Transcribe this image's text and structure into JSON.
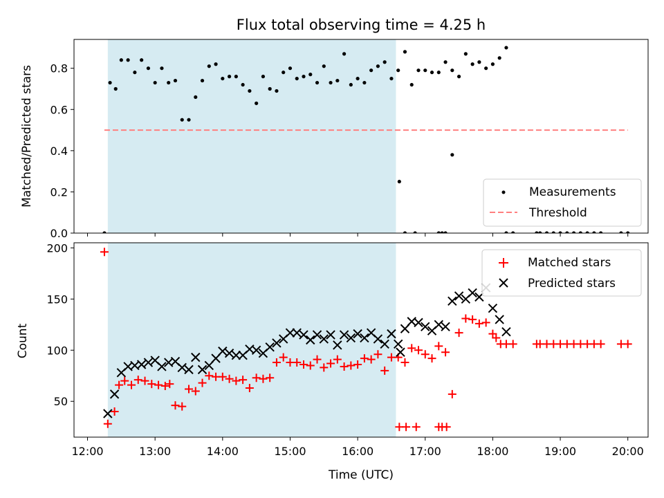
{
  "title": "Flux total observing time = 4.25 h",
  "chart_data": [
    {
      "type": "scatter",
      "panel": "top",
      "xlabel": "",
      "ylabel": "Matched/Predicted stars",
      "xlim": [
        "12:00",
        "20:00"
      ],
      "ylim": [
        0,
        0.94
      ],
      "yticks": [
        "0.0",
        "0.2",
        "0.4",
        "0.6",
        "0.8"
      ],
      "shaded_interval": [
        "12:18",
        "16:34"
      ],
      "shade_color": "#add8e6",
      "legend_position": "lower-right",
      "threshold": {
        "name": "Threshold",
        "value": 0.5,
        "x_range": [
          "12:15",
          "20:00"
        ],
        "color": "#ff7f7f",
        "style": "dashed"
      },
      "series": [
        {
          "name": "Measurements",
          "color": "#000000",
          "marker": "dot",
          "points": [
            [
              "12:15",
              0.0
            ],
            [
              "12:20",
              0.73
            ],
            [
              "12:25",
              0.7
            ],
            [
              "12:30",
              0.84
            ],
            [
              "12:36",
              0.84
            ],
            [
              "12:42",
              0.78
            ],
            [
              "12:48",
              0.84
            ],
            [
              "12:54",
              0.8
            ],
            [
              "13:00",
              0.73
            ],
            [
              "13:06",
              0.8
            ],
            [
              "13:12",
              0.73
            ],
            [
              "13:18",
              0.74
            ],
            [
              "13:24",
              0.55
            ],
            [
              "13:30",
              0.55
            ],
            [
              "13:36",
              0.66
            ],
            [
              "13:42",
              0.74
            ],
            [
              "13:48",
              0.81
            ],
            [
              "13:54",
              0.82
            ],
            [
              "14:00",
              0.75
            ],
            [
              "14:06",
              0.76
            ],
            [
              "14:12",
              0.76
            ],
            [
              "14:18",
              0.72
            ],
            [
              "14:24",
              0.69
            ],
            [
              "14:30",
              0.63
            ],
            [
              "14:36",
              0.76
            ],
            [
              "14:42",
              0.7
            ],
            [
              "14:48",
              0.69
            ],
            [
              "14:54",
              0.78
            ],
            [
              "15:00",
              0.8
            ],
            [
              "15:06",
              0.75
            ],
            [
              "15:12",
              0.76
            ],
            [
              "15:18",
              0.77
            ],
            [
              "15:24",
              0.73
            ],
            [
              "15:30",
              0.81
            ],
            [
              "15:36",
              0.73
            ],
            [
              "15:42",
              0.74
            ],
            [
              "15:48",
              0.87
            ],
            [
              "15:54",
              0.72
            ],
            [
              "16:00",
              0.75
            ],
            [
              "16:06",
              0.73
            ],
            [
              "16:12",
              0.79
            ],
            [
              "16:18",
              0.81
            ],
            [
              "16:24",
              0.83
            ],
            [
              "16:30",
              0.75
            ],
            [
              "16:36",
              0.79
            ],
            [
              "16:42",
              0.88
            ],
            [
              "16:48",
              0.72
            ],
            [
              "16:54",
              0.79
            ],
            [
              "17:00",
              0.79
            ],
            [
              "17:06",
              0.78
            ],
            [
              "17:12",
              0.78
            ],
            [
              "17:18",
              0.83
            ],
            [
              "17:24",
              0.79
            ],
            [
              "16:37",
              0.25
            ],
            [
              "16:42",
              0.0
            ],
            [
              "16:51",
              0.0
            ],
            [
              "17:12",
              0.0
            ],
            [
              "17:15",
              0.0
            ],
            [
              "17:18",
              0.0
            ],
            [
              "17:24",
              0.38
            ],
            [
              "17:30",
              0.76
            ],
            [
              "17:36",
              0.87
            ],
            [
              "17:42",
              0.82
            ],
            [
              "17:48",
              0.83
            ],
            [
              "17:54",
              0.8
            ],
            [
              "18:00",
              0.82
            ],
            [
              "18:06",
              0.85
            ],
            [
              "18:12",
              0.9
            ],
            [
              "18:12",
              0.0
            ],
            [
              "18:18",
              0.0
            ],
            [
              "18:39",
              0.0
            ],
            [
              "18:42",
              0.0
            ],
            [
              "18:48",
              0.0
            ],
            [
              "18:54",
              0.0
            ],
            [
              "19:00",
              0.0
            ],
            [
              "19:06",
              0.0
            ],
            [
              "19:12",
              0.0
            ],
            [
              "19:18",
              0.0
            ],
            [
              "19:24",
              0.0
            ],
            [
              "19:30",
              0.0
            ],
            [
              "19:36",
              0.0
            ],
            [
              "19:54",
              0.0
            ],
            [
              "20:00",
              0.0
            ]
          ]
        }
      ]
    },
    {
      "type": "scatter",
      "panel": "bottom",
      "xlabel": "Time (UTC)",
      "ylabel": "Count",
      "xlim": [
        "12:00",
        "20:00"
      ],
      "ylim": [
        15,
        205
      ],
      "yticks": [
        "50",
        "100",
        "150",
        "200"
      ],
      "xticks": [
        "12:00",
        "13:00",
        "14:00",
        "15:00",
        "16:00",
        "17:00",
        "18:00",
        "19:00",
        "20:00"
      ],
      "shaded_interval": [
        "12:18",
        "16:34"
      ],
      "shade_color": "#add8e6",
      "legend_position": "upper-right",
      "series": [
        {
          "name": "Matched stars",
          "color": "#ff0000",
          "marker": "plus",
          "points": [
            [
              "12:15",
              196
            ],
            [
              "12:18",
              28
            ],
            [
              "12:24",
              40
            ],
            [
              "12:28",
              66
            ],
            [
              "12:33",
              70
            ],
            [
              "12:39",
              66
            ],
            [
              "12:45",
              71
            ],
            [
              "12:51",
              70
            ],
            [
              "12:57",
              67
            ],
            [
              "13:03",
              66
            ],
            [
              "13:09",
              65
            ],
            [
              "13:13",
              67
            ],
            [
              "13:18",
              46
            ],
            [
              "13:24",
              45
            ],
            [
              "13:30",
              62
            ],
            [
              "13:36",
              60
            ],
            [
              "13:42",
              68
            ],
            [
              "13:48",
              75
            ],
            [
              "13:54",
              74
            ],
            [
              "14:00",
              74
            ],
            [
              "14:06",
              72
            ],
            [
              "14:12",
              70
            ],
            [
              "14:18",
              71
            ],
            [
              "14:24",
              63
            ],
            [
              "14:30",
              73
            ],
            [
              "14:36",
              72
            ],
            [
              "14:42",
              73
            ],
            [
              "14:48",
              88
            ],
            [
              "14:54",
              93
            ],
            [
              "15:00",
              88
            ],
            [
              "15:06",
              88
            ],
            [
              "15:12",
              86
            ],
            [
              "15:18",
              85
            ],
            [
              "15:24",
              91
            ],
            [
              "15:30",
              83
            ],
            [
              "15:36",
              87
            ],
            [
              "15:42",
              91
            ],
            [
              "15:48",
              84
            ],
            [
              "15:54",
              85
            ],
            [
              "16:00",
              86
            ],
            [
              "16:06",
              92
            ],
            [
              "16:12",
              91
            ],
            [
              "16:18",
              96
            ],
            [
              "16:24",
              80
            ],
            [
              "16:30",
              93
            ],
            [
              "16:36",
              93
            ],
            [
              "16:42",
              88
            ],
            [
              "16:48",
              102
            ],
            [
              "16:54",
              100
            ],
            [
              "17:00",
              96
            ],
            [
              "17:06",
              92
            ],
            [
              "17:12",
              104
            ],
            [
              "17:18",
              98
            ],
            [
              "16:37",
              25
            ],
            [
              "16:43",
              25
            ],
            [
              "16:52",
              25
            ],
            [
              "17:12",
              25
            ],
            [
              "17:15",
              25
            ],
            [
              "17:19",
              25
            ],
            [
              "17:24",
              57
            ],
            [
              "17:30",
              117
            ],
            [
              "17:36",
              131
            ],
            [
              "17:42",
              130
            ],
            [
              "17:48",
              126
            ],
            [
              "17:54",
              127
            ],
            [
              "18:00",
              116
            ],
            [
              "18:03",
              112
            ],
            [
              "18:07",
              106
            ],
            [
              "18:12",
              106
            ],
            [
              "18:18",
              106
            ],
            [
              "18:39",
              106
            ],
            [
              "18:42",
              106
            ],
            [
              "18:48",
              106
            ],
            [
              "18:54",
              106
            ],
            [
              "19:00",
              106
            ],
            [
              "19:06",
              106
            ],
            [
              "19:12",
              106
            ],
            [
              "19:18",
              106
            ],
            [
              "19:24",
              106
            ],
            [
              "19:30",
              106
            ],
            [
              "19:36",
              106
            ],
            [
              "19:54",
              106
            ],
            [
              "20:00",
              106
            ]
          ]
        },
        {
          "name": "Predicted stars",
          "color": "#000000",
          "marker": "x",
          "points": [
            [
              "12:18",
              38
            ],
            [
              "12:24",
              57
            ],
            [
              "12:30",
              78
            ],
            [
              "12:36",
              84
            ],
            [
              "12:42",
              85
            ],
            [
              "12:48",
              86
            ],
            [
              "12:54",
              88
            ],
            [
              "13:00",
              90
            ],
            [
              "13:06",
              84
            ],
            [
              "13:12",
              88
            ],
            [
              "13:18",
              89
            ],
            [
              "13:24",
              83
            ],
            [
              "13:30",
              81
            ],
            [
              "13:36",
              93
            ],
            [
              "13:42",
              81
            ],
            [
              "13:48",
              85
            ],
            [
              "13:54",
              92
            ],
            [
              "14:00",
              99
            ],
            [
              "14:06",
              97
            ],
            [
              "14:12",
              95
            ],
            [
              "14:18",
              95
            ],
            [
              "14:24",
              101
            ],
            [
              "14:30",
              100
            ],
            [
              "14:36",
              97
            ],
            [
              "14:42",
              103
            ],
            [
              "14:48",
              107
            ],
            [
              "14:54",
              111
            ],
            [
              "15:00",
              117
            ],
            [
              "15:06",
              117
            ],
            [
              "15:12",
              115
            ],
            [
              "15:18",
              110
            ],
            [
              "15:24",
              115
            ],
            [
              "15:30",
              111
            ],
            [
              "15:36",
              115
            ],
            [
              "15:42",
              105
            ],
            [
              "15:48",
              115
            ],
            [
              "15:54",
              112
            ],
            [
              "16:00",
              116
            ],
            [
              "16:06",
              112
            ],
            [
              "16:12",
              117
            ],
            [
              "16:18",
              111
            ],
            [
              "16:24",
              106
            ],
            [
              "16:30",
              116
            ],
            [
              "16:36",
              106
            ],
            [
              "16:42",
              121
            ],
            [
              "16:48",
              128
            ],
            [
              "16:54",
              127
            ],
            [
              "17:00",
              123
            ],
            [
              "17:06",
              119
            ],
            [
              "17:12",
              125
            ],
            [
              "17:18",
              123
            ],
            [
              "16:38",
              98
            ],
            [
              "17:24",
              148
            ],
            [
              "17:30",
              153
            ],
            [
              "17:36",
              150
            ],
            [
              "17:42",
              156
            ],
            [
              "17:48",
              152
            ],
            [
              "17:54",
              161
            ],
            [
              "18:00",
              141
            ],
            [
              "18:06",
              130
            ],
            [
              "18:12",
              118
            ]
          ]
        }
      ]
    }
  ]
}
